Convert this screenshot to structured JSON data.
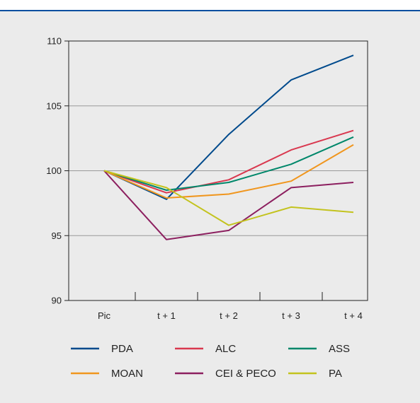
{
  "chart_data": {
    "type": "line",
    "title": "",
    "xlabel": "",
    "ylabel": "",
    "categories": [
      "Pic",
      "t + 1",
      "t + 2",
      "t + 3",
      "t + 4"
    ],
    "ylim": [
      90,
      110
    ],
    "yticks": [
      90,
      95,
      100,
      105,
      110
    ],
    "grid": true,
    "legend_position": "bottom",
    "series": [
      {
        "name": "PDA",
        "color": "#004a8c",
        "values": [
          100,
          97.8,
          102.8,
          107.0,
          108.9
        ]
      },
      {
        "name": "ALC",
        "color": "#d9384f",
        "values": [
          100,
          98.3,
          99.3,
          101.6,
          103.1
        ]
      },
      {
        "name": "ASS",
        "color": "#00876a",
        "values": [
          100,
          98.5,
          99.1,
          100.5,
          102.6
        ]
      },
      {
        "name": "MOAN",
        "color": "#f0961e",
        "values": [
          100,
          97.9,
          98.2,
          99.2,
          102.0
        ]
      },
      {
        "name": "CEI & PECO",
        "color": "#8c1f5f",
        "values": [
          100,
          94.7,
          95.4,
          98.7,
          99.1
        ]
      },
      {
        "name": "PA",
        "color": "#c3c31e",
        "values": [
          100,
          98.7,
          95.8,
          97.2,
          96.8
        ]
      }
    ]
  }
}
